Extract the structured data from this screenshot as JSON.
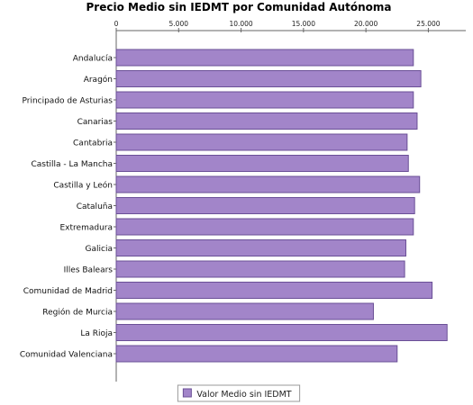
{
  "chart_data": {
    "type": "bar",
    "orientation": "horizontal",
    "title": "Precio Medio sin IEDMT por Comunidad Autónoma",
    "xlabel": "",
    "ylabel": "",
    "xlim": [
      0,
      28000
    ],
    "ticks": [
      {
        "value": 0,
        "label": "0"
      },
      {
        "value": 5000,
        "label": "5.000"
      },
      {
        "value": 10000,
        "label": "10.000"
      },
      {
        "value": 15000,
        "label": "15.000"
      },
      {
        "value": 20000,
        "label": "20.000"
      },
      {
        "value": 25000,
        "label": "25.000"
      }
    ],
    "axis_position": "top",
    "grid": false,
    "categories": [
      "Andalucía",
      "Aragón",
      "Principado de Asturias",
      "Canarias",
      "Cantabria",
      "Castilla - La Mancha",
      "Castilla y León",
      "Cataluña",
      "Extremadura",
      "Galicia",
      "Illes Balears",
      "Comunidad de Madrid",
      "Región de Murcia",
      "La Rioja",
      "Comunidad Valenciana"
    ],
    "series": [
      {
        "name": "Valor Medio sin IEDMT",
        "values": [
          23800,
          24400,
          23800,
          24100,
          23300,
          23400,
          24300,
          23900,
          23800,
          23200,
          23100,
          25300,
          20600,
          26500,
          22500
        ]
      }
    ],
    "legend_position": "bottom-center",
    "colors": {
      "bar_fill": "#a285c9",
      "bar_stroke": "#6a4f96",
      "axis": "#666666"
    }
  }
}
